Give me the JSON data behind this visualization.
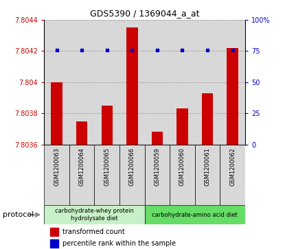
{
  "title": "GDS5390 / 1369044_a_at",
  "samples": [
    "GSM1200063",
    "GSM1200064",
    "GSM1200065",
    "GSM1200066",
    "GSM1200059",
    "GSM1200060",
    "GSM1200061",
    "GSM1200062"
  ],
  "transformed_counts": [
    7.804,
    7.80375,
    7.80385,
    7.80435,
    7.80368,
    7.80383,
    7.80393,
    7.80422
  ],
  "percentile_ranks": [
    76,
    76,
    76,
    76,
    76,
    76,
    76,
    76
  ],
  "ylim_left": [
    7.8036,
    7.8044
  ],
  "ylim_right": [
    0,
    100
  ],
  "yticks_left": [
    7.8036,
    7.8038,
    7.804,
    7.8042,
    7.8044
  ],
  "yticks_right": [
    0,
    25,
    50,
    75,
    100
  ],
  "ytick_labels_left": [
    "7.8036",
    "7.8038",
    "7.804",
    "7.8042",
    "7.8044"
  ],
  "ytick_labels_right": [
    "0",
    "25",
    "50",
    "75",
    "100%"
  ],
  "group1_label": "carbohydrate-whey protein\nhydrolysate diet",
  "group2_label": "carbohydrate-amino acid diet",
  "group1_color": "#c8f0c8",
  "group2_color": "#66dd66",
  "bar_color": "#cc0000",
  "dot_color": "#0000cc",
  "cell_bg_color": "#d8d8d8",
  "bar_bottom": 7.8036,
  "protocol_label": "protocol",
  "dotted_line_color": "#888888",
  "legend_red": "#cc0000",
  "legend_blue": "#0000cc",
  "legend_red_label": "transformed count",
  "legend_blue_label": "percentile rank within the sample"
}
